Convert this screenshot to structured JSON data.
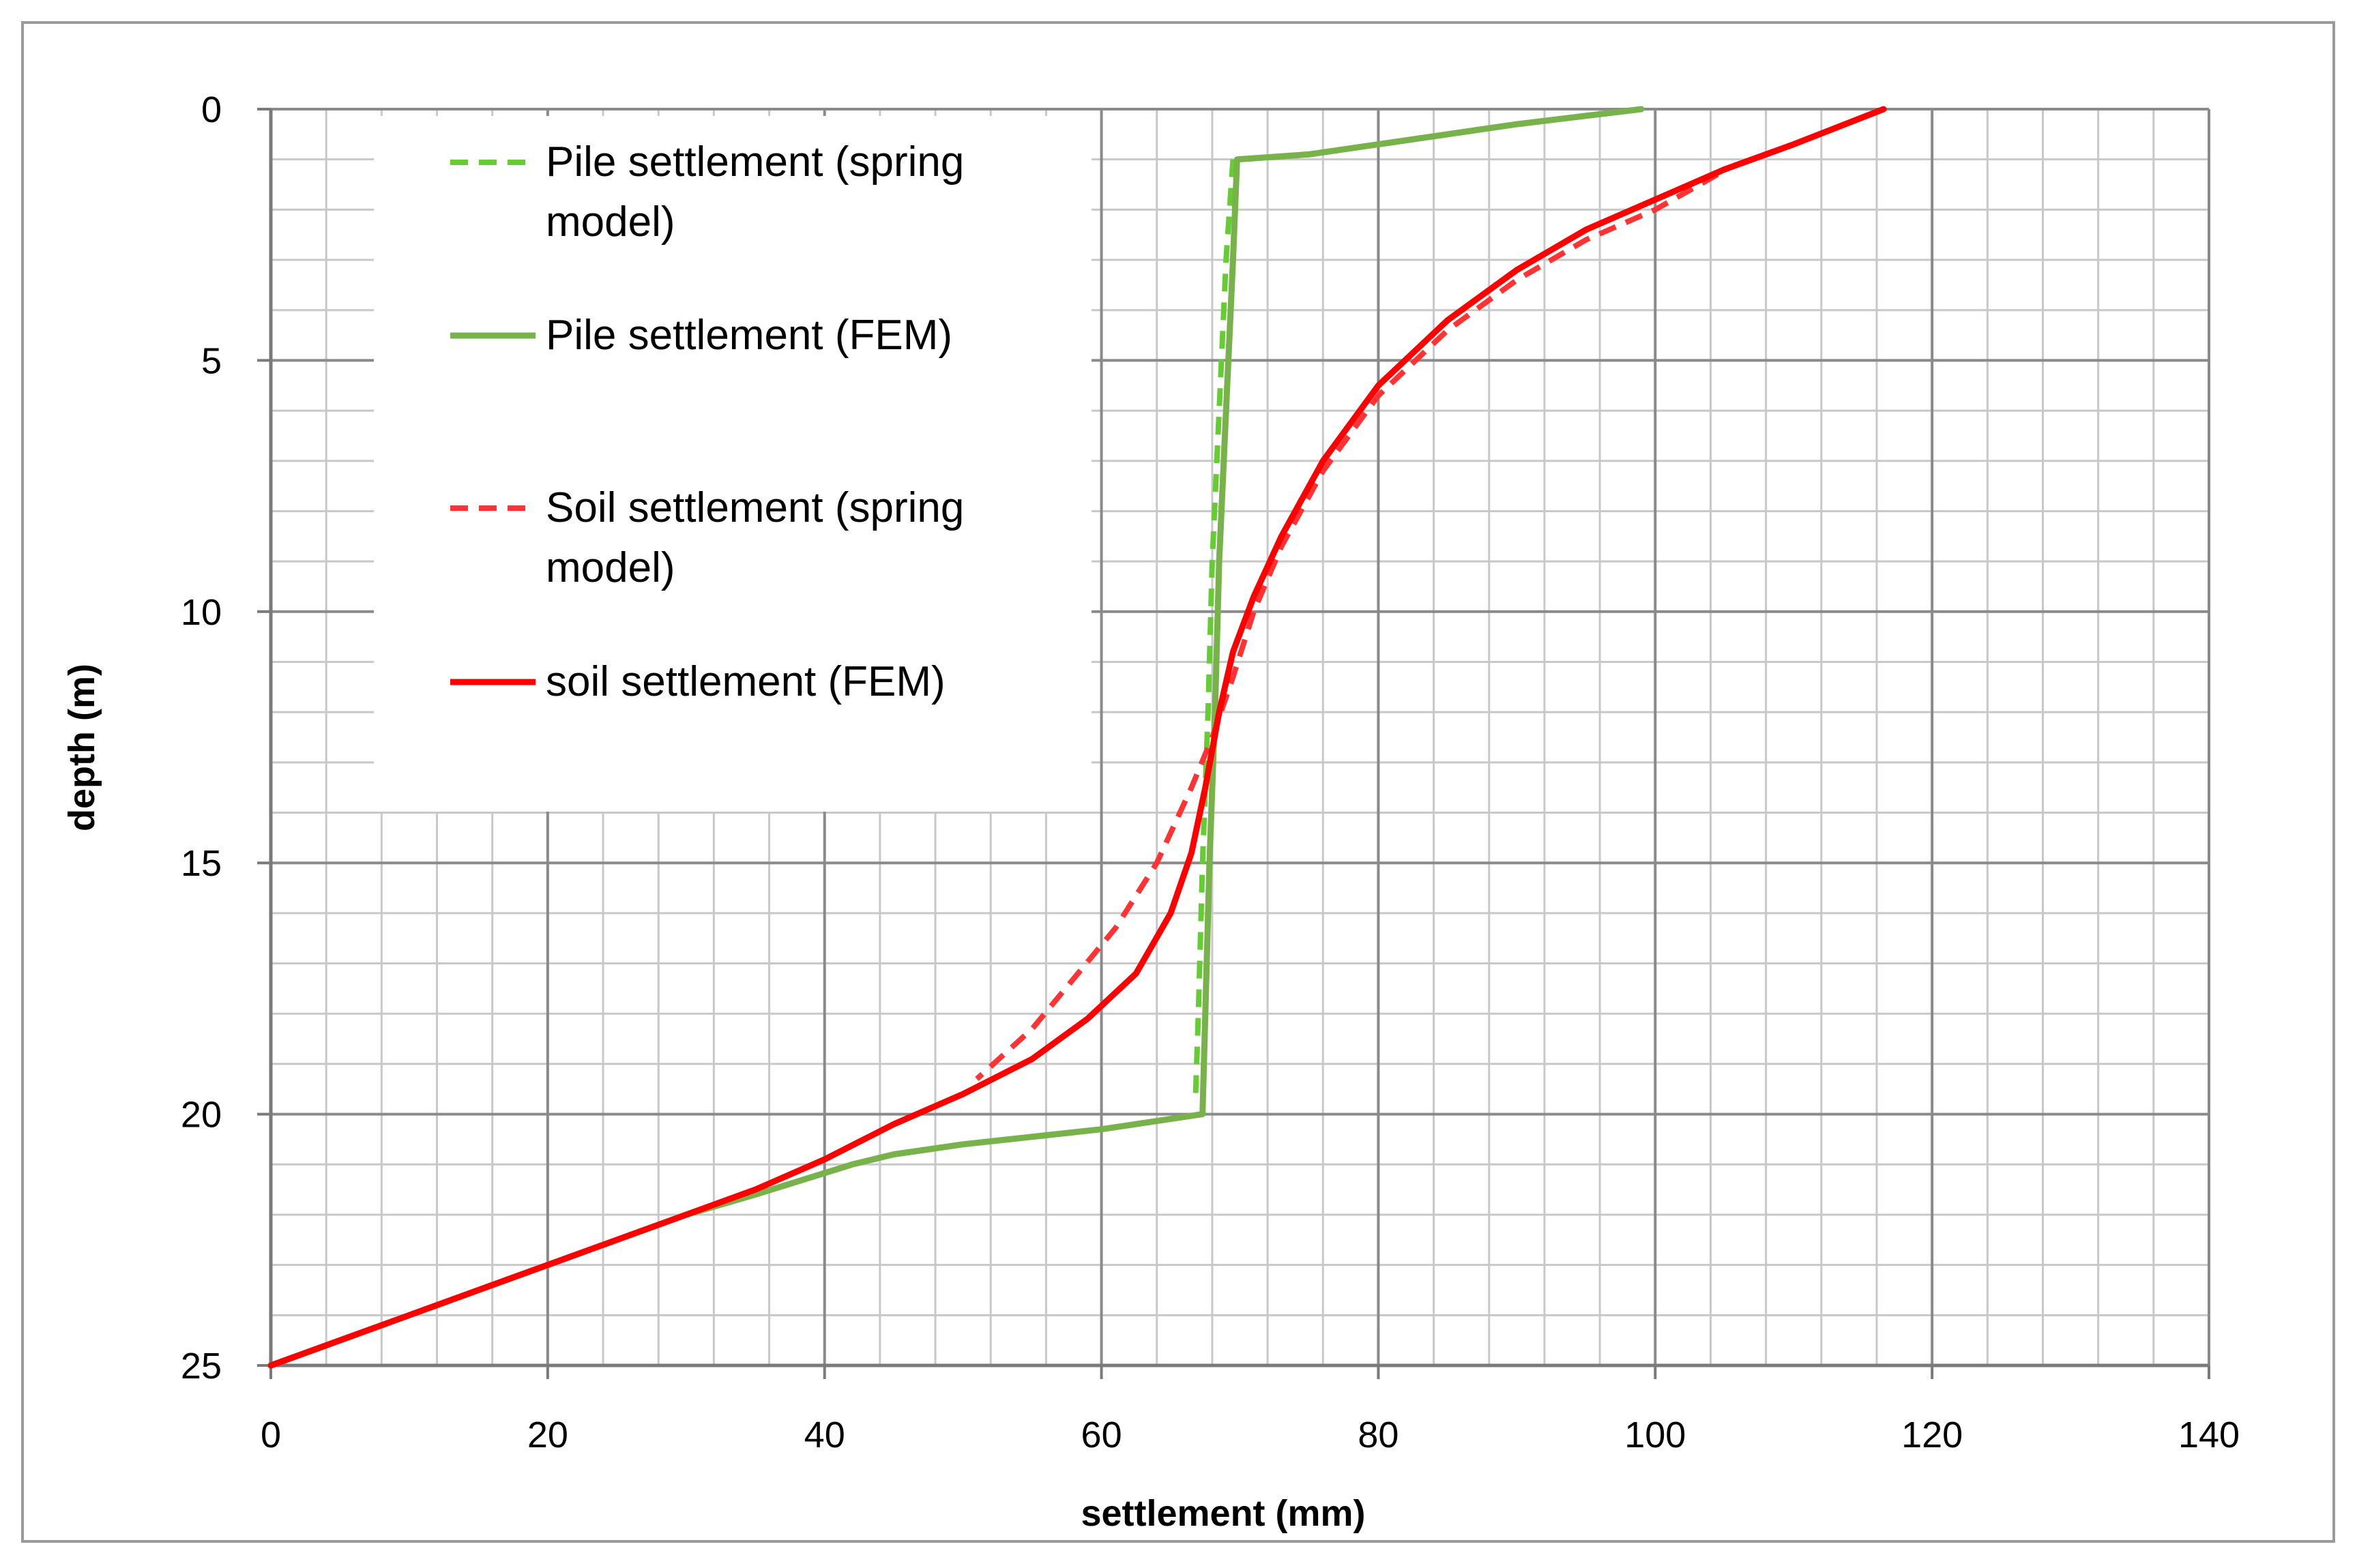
{
  "chart_data": {
    "type": "line",
    "xlabel": "settlement (mm)",
    "ylabel": "depth (m)",
    "xlim": [
      0,
      140
    ],
    "ylim": [
      0,
      25
    ],
    "y_inverted": true,
    "x_ticks": [
      "0",
      "20",
      "40",
      "60",
      "80",
      "100",
      "120",
      "140"
    ],
    "y_ticks": [
      "0",
      "5",
      "10",
      "15",
      "20",
      "25"
    ],
    "grid": true,
    "legend_position": "top-left",
    "series": [
      {
        "name": "Pile settlement (spring model)",
        "name_lines": [
          "Pile settlement (spring",
          "model)"
        ],
        "color": "#66cc33",
        "dash": true,
        "points": [
          [
            69.5,
            1.0
          ],
          [
            69.0,
            3
          ],
          [
            68.5,
            6
          ],
          [
            68.0,
            9
          ],
          [
            67.7,
            12
          ],
          [
            67.3,
            15
          ],
          [
            67.0,
            18
          ],
          [
            66.8,
            19.6
          ]
        ]
      },
      {
        "name": "Pile settlement (FEM)",
        "name_lines": [
          "Pile settlement (FEM)"
        ],
        "color": "#77b24b",
        "dash": false,
        "points": [
          [
            99,
            0
          ],
          [
            90,
            0.3
          ],
          [
            80,
            0.7
          ],
          [
            75,
            0.9
          ],
          [
            69.8,
            1.0
          ],
          [
            69.5,
            3
          ],
          [
            69.0,
            6
          ],
          [
            68.5,
            9
          ],
          [
            68.2,
            12
          ],
          [
            67.8,
            15
          ],
          [
            67.5,
            18
          ],
          [
            67.3,
            20
          ],
          [
            60,
            20.3
          ],
          [
            50,
            20.6
          ],
          [
            45,
            20.8
          ],
          [
            42,
            21.0
          ],
          [
            35,
            21.6
          ],
          [
            30,
            22.0
          ],
          [
            20,
            23.0
          ],
          [
            10,
            24.0
          ],
          [
            0,
            25.0
          ]
        ]
      },
      {
        "name": "Soil settlement (spring model)",
        "name_lines": [
          "Soil settlement (spring",
          "model)"
        ],
        "color": "#ff3333",
        "dash": true,
        "points": [
          [
            104.5,
            1.3
          ],
          [
            100,
            2.0
          ],
          [
            95,
            2.6
          ],
          [
            90,
            3.4
          ],
          [
            85,
            4.4
          ],
          [
            80,
            5.7
          ],
          [
            76,
            7.2
          ],
          [
            73,
            8.7
          ],
          [
            71,
            10.0
          ],
          [
            69.5,
            11.3
          ],
          [
            68,
            12.5
          ],
          [
            66.5,
            13.5
          ],
          [
            64,
            15.0
          ],
          [
            61,
            16.3
          ],
          [
            58,
            17.3
          ],
          [
            55,
            18.3
          ],
          [
            51,
            19.3
          ]
        ]
      },
      {
        "name": "soil settlement (FEM)",
        "name_lines": [
          "soil settlement (FEM)"
        ],
        "color": "#ff0000",
        "dash": false,
        "points": [
          [
            116.5,
            0
          ],
          [
            110,
            0.7
          ],
          [
            105,
            1.2
          ],
          [
            100,
            1.8
          ],
          [
            95,
            2.4
          ],
          [
            90,
            3.2
          ],
          [
            85,
            4.2
          ],
          [
            80,
            5.5
          ],
          [
            76,
            7.0
          ],
          [
            73,
            8.5
          ],
          [
            71,
            9.7
          ],
          [
            69.5,
            10.8
          ],
          [
            68.5,
            12.0
          ],
          [
            67.5,
            13.5
          ],
          [
            66.5,
            14.8
          ],
          [
            65,
            16.0
          ],
          [
            62.5,
            17.2
          ],
          [
            59,
            18.1
          ],
          [
            55,
            18.9
          ],
          [
            50,
            19.6
          ],
          [
            45,
            20.2
          ],
          [
            40,
            20.9
          ],
          [
            35,
            21.5
          ],
          [
            30,
            22.0
          ],
          [
            20,
            23.0
          ],
          [
            10,
            24.0
          ],
          [
            0,
            25.0
          ]
        ]
      }
    ]
  }
}
